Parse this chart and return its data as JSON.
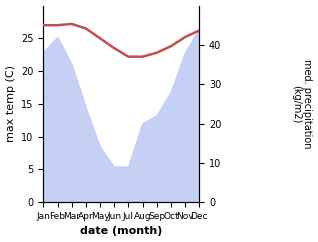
{
  "months": [
    "Jan",
    "Feb",
    "Mar",
    "Apr",
    "May",
    "Jun",
    "Jul",
    "Aug",
    "Sep",
    "Oct",
    "Nov",
    "Dec"
  ],
  "month_indices": [
    1,
    2,
    3,
    4,
    5,
    6,
    7,
    8,
    9,
    10,
    11,
    12
  ],
  "temperature": [
    27.0,
    27.0,
    27.2,
    26.5,
    25.0,
    23.5,
    22.2,
    22.2,
    22.8,
    23.8,
    25.2,
    26.2
  ],
  "precipitation": [
    38,
    42,
    35,
    24,
    14,
    9,
    9,
    20,
    22,
    28,
    38,
    44
  ],
  "temp_color": "#c0504d",
  "precip_fill_color": "#c5d0f5",
  "temp_ylim": [
    0,
    30
  ],
  "precip_ylim": [
    0,
    50
  ],
  "temp_yticks": [
    0,
    5,
    10,
    15,
    20,
    25
  ],
  "precip_yticks": [
    0,
    10,
    20,
    30,
    40
  ],
  "ylabel_left": "max temp (C)",
  "ylabel_right": "med. precipitation\n(kg/m2)",
  "xlabel": "date (month)",
  "figsize": [
    3.18,
    2.42
  ],
  "dpi": 100
}
